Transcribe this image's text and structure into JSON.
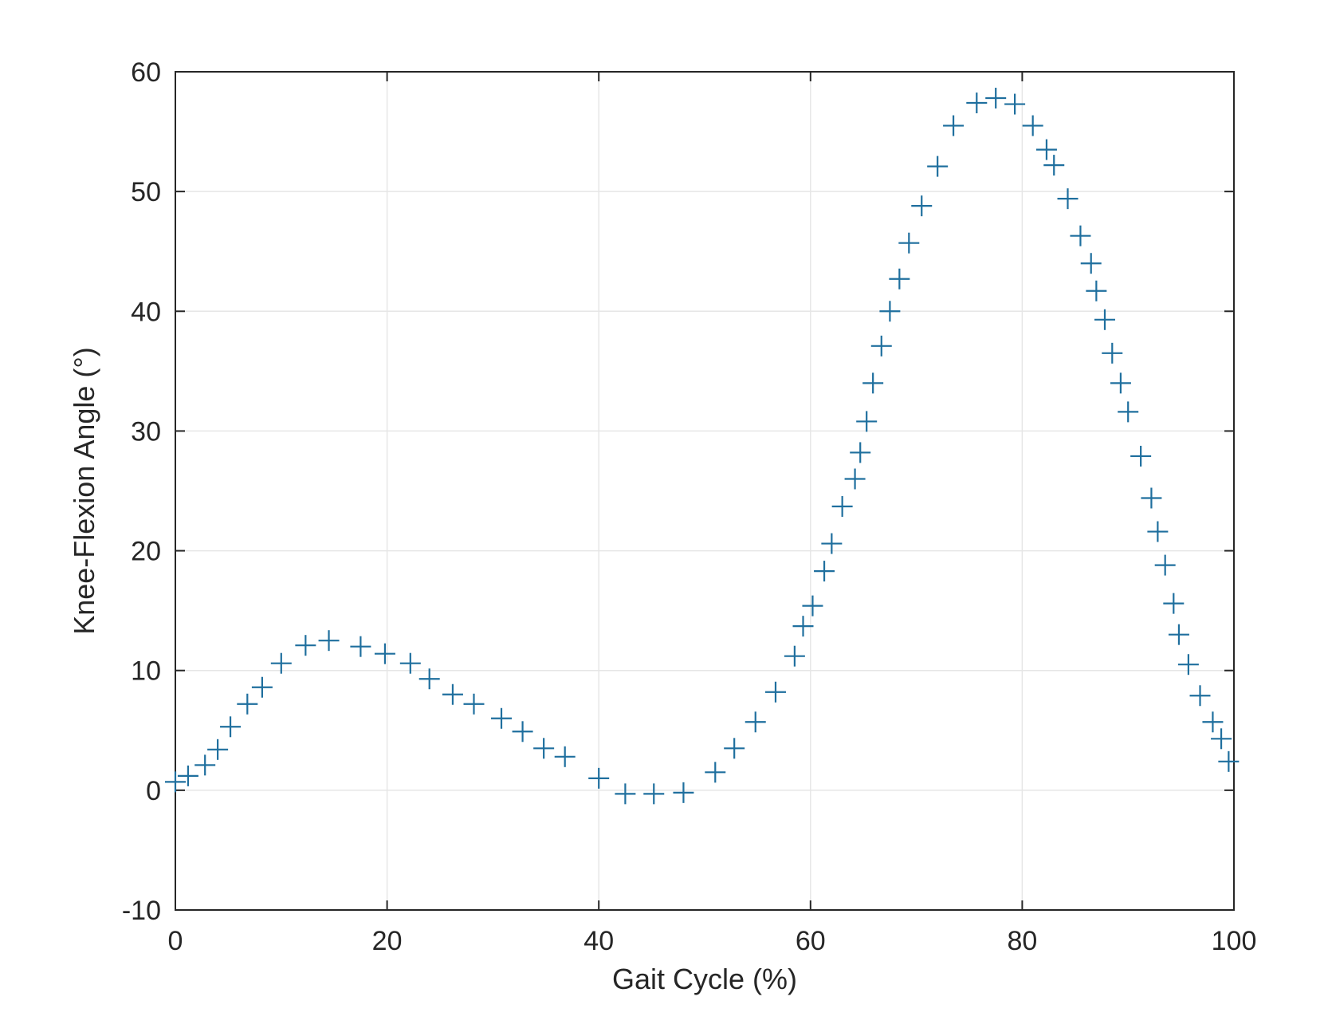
{
  "chart_data": {
    "type": "scatter",
    "marker": "+",
    "marker_color": "#1f6f9e",
    "title": "",
    "xlabel": "Gait Cycle (%)",
    "ylabel": "Knee-Flexion Angle (°)",
    "xlim": [
      0,
      100
    ],
    "ylim": [
      -10,
      60
    ],
    "x_ticks": [
      0,
      20,
      40,
      60,
      80,
      100
    ],
    "y_ticks": [
      -10,
      0,
      10,
      20,
      30,
      40,
      50,
      60
    ],
    "x_tick_labels": [
      "0",
      "20",
      "40",
      "60",
      "80",
      "100"
    ],
    "y_tick_labels": [
      "-10",
      "0",
      "10",
      "20",
      "30",
      "40",
      "50",
      "60"
    ],
    "grid": true,
    "series": [
      {
        "name": "Knee-Flexion Angle",
        "x": [
          0,
          1.2,
          2.8,
          4.0,
          5.2,
          6.8,
          8.2,
          10.0,
          12.3,
          14.5,
          17.5,
          19.8,
          22.2,
          24.0,
          26.2,
          28.2,
          30.8,
          32.8,
          34.8,
          36.8,
          40.0,
          42.5,
          45.2,
          48.0,
          51.0,
          52.8,
          54.8,
          56.7,
          58.5,
          59.3,
          60.2,
          61.3,
          62.0,
          63.0,
          64.2,
          64.7,
          65.3,
          65.9,
          66.7,
          67.5,
          68.4,
          69.3,
          70.5,
          72.0,
          73.5,
          75.7,
          77.5,
          79.3,
          81.0,
          82.3,
          83.0,
          84.3,
          85.5,
          86.5,
          87.0,
          87.8,
          88.5,
          89.3,
          90.0,
          91.2,
          92.2,
          92.8,
          93.5,
          94.3,
          94.8,
          95.7,
          96.8,
          98.0,
          98.8,
          99.5
        ],
        "y": [
          0.7,
          1.2,
          2.1,
          3.4,
          5.3,
          7.2,
          8.6,
          10.6,
          12.1,
          12.5,
          12.0,
          11.4,
          10.6,
          9.3,
          8.0,
          7.2,
          6.0,
          4.9,
          3.5,
          2.8,
          1.0,
          -0.3,
          -0.3,
          -0.2,
          1.5,
          3.5,
          5.7,
          8.2,
          11.2,
          13.7,
          15.4,
          18.3,
          20.6,
          23.7,
          26.0,
          28.2,
          30.8,
          34.0,
          37.1,
          40.0,
          42.7,
          45.7,
          48.8,
          52.1,
          55.5,
          57.4,
          57.8,
          57.3,
          55.5,
          53.5,
          52.2,
          49.4,
          46.3,
          44.0,
          41.7,
          39.3,
          36.5,
          34.0,
          31.6,
          27.9,
          24.4,
          21.6,
          18.8,
          15.6,
          13.0,
          10.5,
          7.9,
          5.7,
          4.3,
          2.4
        ]
      }
    ]
  }
}
